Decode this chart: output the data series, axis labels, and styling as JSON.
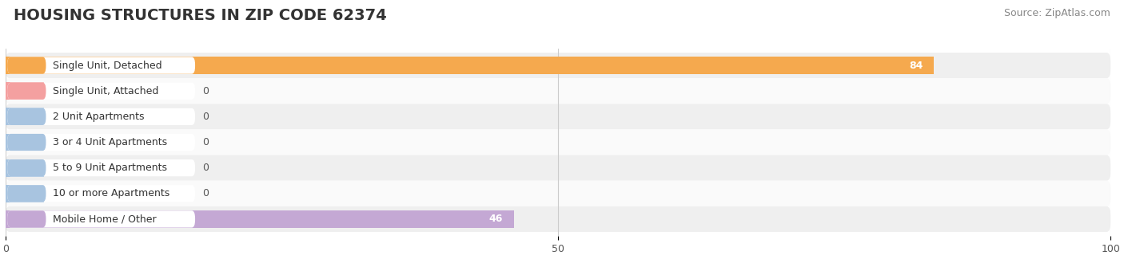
{
  "title": "HOUSING STRUCTURES IN ZIP CODE 62374",
  "source": "Source: ZipAtlas.com",
  "categories": [
    "Single Unit, Detached",
    "Single Unit, Attached",
    "2 Unit Apartments",
    "3 or 4 Unit Apartments",
    "5 to 9 Unit Apartments",
    "10 or more Apartments",
    "Mobile Home / Other"
  ],
  "values": [
    84,
    0,
    0,
    0,
    0,
    0,
    46
  ],
  "bar_colors": [
    "#F5A94E",
    "#F4A0A0",
    "#A8C4E0",
    "#A8C4E0",
    "#A8C4E0",
    "#A8C4E0",
    "#C4A8D4"
  ],
  "row_bg_colors": [
    "#EFEFEF",
    "#FAFAFA",
    "#EFEFEF",
    "#FAFAFA",
    "#EFEFEF",
    "#FAFAFA",
    "#EFEFEF"
  ],
  "xlim": [
    0,
    100
  ],
  "xticks": [
    0,
    50,
    100
  ],
  "background_color": "#FFFFFF",
  "grid_color": "#CCCCCC",
  "title_fontsize": 14,
  "source_fontsize": 9,
  "label_fontsize": 9,
  "value_fontsize": 9
}
